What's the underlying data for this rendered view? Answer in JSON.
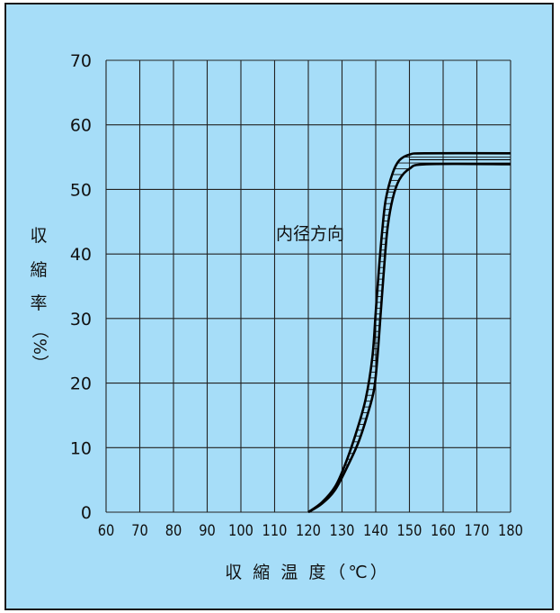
{
  "chart_data": {
    "type": "line",
    "xlabel": "収 縮 温 度（℃）",
    "ylabel_chars": [
      "収",
      "縮",
      "率",
      "（%）"
    ],
    "x_ticks": [
      60,
      70,
      80,
      90,
      100,
      110,
      120,
      130,
      140,
      150,
      160,
      170,
      180
    ],
    "y_ticks": [
      0,
      10,
      20,
      30,
      40,
      50,
      60,
      70
    ],
    "xlim": [
      60,
      180
    ],
    "ylim": [
      0,
      70
    ],
    "grid": true,
    "annotation": "内径方向",
    "band": {
      "upper": [
        [
          120,
          0
        ],
        [
          124,
          1.5
        ],
        [
          128,
          4
        ],
        [
          131,
          7.5
        ],
        [
          134,
          12
        ],
        [
          137,
          17.5
        ],
        [
          139,
          24
        ],
        [
          140,
          31
        ],
        [
          141,
          38
        ],
        [
          142,
          44
        ],
        [
          143,
          48.5
        ],
        [
          145,
          52.5
        ],
        [
          147,
          54.5
        ],
        [
          150,
          55.4
        ],
        [
          155,
          55.6
        ],
        [
          180,
          55.6
        ]
      ],
      "lower": [
        [
          120,
          0
        ],
        [
          124,
          1.3
        ],
        [
          128,
          3.5
        ],
        [
          132,
          7.5
        ],
        [
          135,
          11
        ],
        [
          137.5,
          15
        ],
        [
          139.5,
          19
        ],
        [
          140.5,
          24
        ],
        [
          141.5,
          31
        ],
        [
          142.5,
          38
        ],
        [
          143.5,
          44
        ],
        [
          145,
          48.5
        ],
        [
          147,
          51.5
        ],
        [
          150,
          53.2
        ],
        [
          155,
          53.9
        ],
        [
          180,
          53.9
        ]
      ],
      "middle": [
        [
          150,
          54.6
        ],
        [
          180,
          54.6
        ]
      ]
    }
  }
}
